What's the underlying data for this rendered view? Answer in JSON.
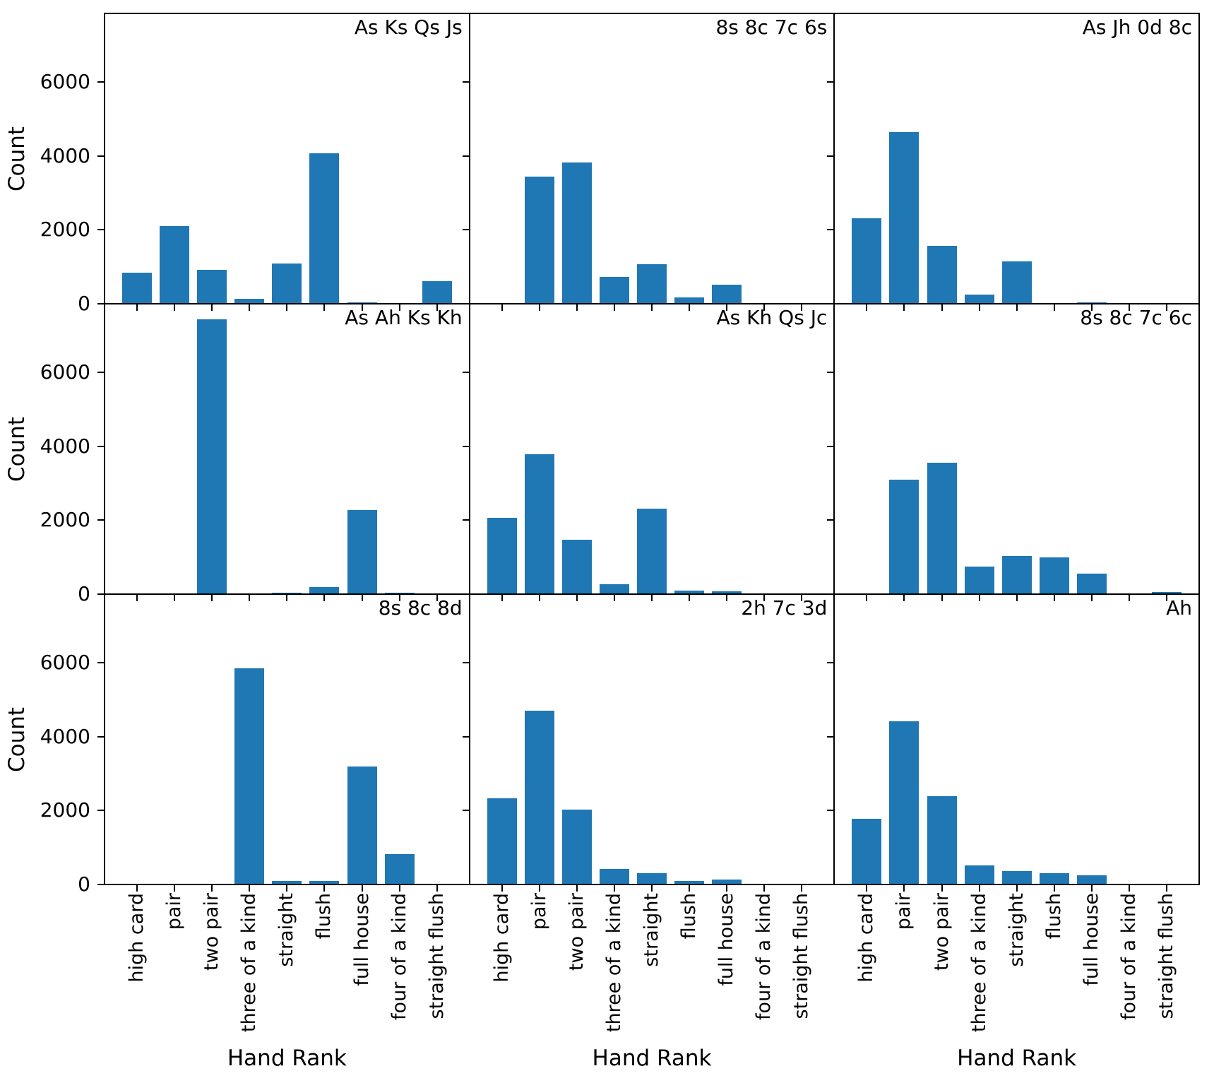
{
  "figure": {
    "background": "#ffffff",
    "text_color": "#000000",
    "spine_color": "#000000"
  },
  "chart_data": {
    "type": "bar",
    "layout": "3x3 grid, shared x and y axes, no gaps between subplots",
    "grid": false,
    "legend": "none",
    "bar_color": "#1f77b4",
    "xlabel": "Hand Rank",
    "ylabel": "Count",
    "ylim": [
      0,
      7850
    ],
    "yticks": [
      0,
      2000,
      4000,
      6000
    ],
    "yticklabels": [
      "0",
      "2000",
      "4000",
      "6000"
    ],
    "categories": [
      "high card",
      "pair",
      "two pair",
      "three of a kind",
      "straight",
      "flush",
      "full house",
      "four of a kind",
      "straight flush"
    ],
    "subplots": [
      {
        "title": "As Ks Qs Js",
        "values": [
          840,
          2110,
          915,
          130,
          1085,
          4075,
          40,
          0,
          610
        ]
      },
      {
        "title": "8s 8c 7c 6s",
        "values": [
          0,
          3440,
          3830,
          730,
          1075,
          170,
          520,
          0,
          0
        ]
      },
      {
        "title": "As Jh 0d 8c",
        "values": [
          2320,
          4650,
          1570,
          240,
          1150,
          0,
          40,
          0,
          0
        ]
      },
      {
        "title": "As Ah Ks Kh",
        "values": [
          0,
          0,
          7440,
          0,
          45,
          190,
          2270,
          45,
          0
        ]
      },
      {
        "title": "As Kh Qs Jc",
        "values": [
          2060,
          3780,
          1480,
          260,
          2320,
          90,
          75,
          0,
          0
        ]
      },
      {
        "title": "8s 8c 7c 6c",
        "values": [
          0,
          3100,
          3550,
          745,
          1030,
          985,
          555,
          0,
          60
        ]
      },
      {
        "title": "8s 8c 8d",
        "values": [
          0,
          0,
          0,
          5840,
          100,
          100,
          3200,
          820,
          0
        ]
      },
      {
        "title": "2h 7c 3d",
        "values": [
          2330,
          4690,
          2030,
          420,
          300,
          90,
          130,
          0,
          0
        ]
      },
      {
        "title": "Ah",
        "values": [
          1780,
          4410,
          2390,
          510,
          360,
          300,
          250,
          0,
          0
        ]
      }
    ]
  }
}
